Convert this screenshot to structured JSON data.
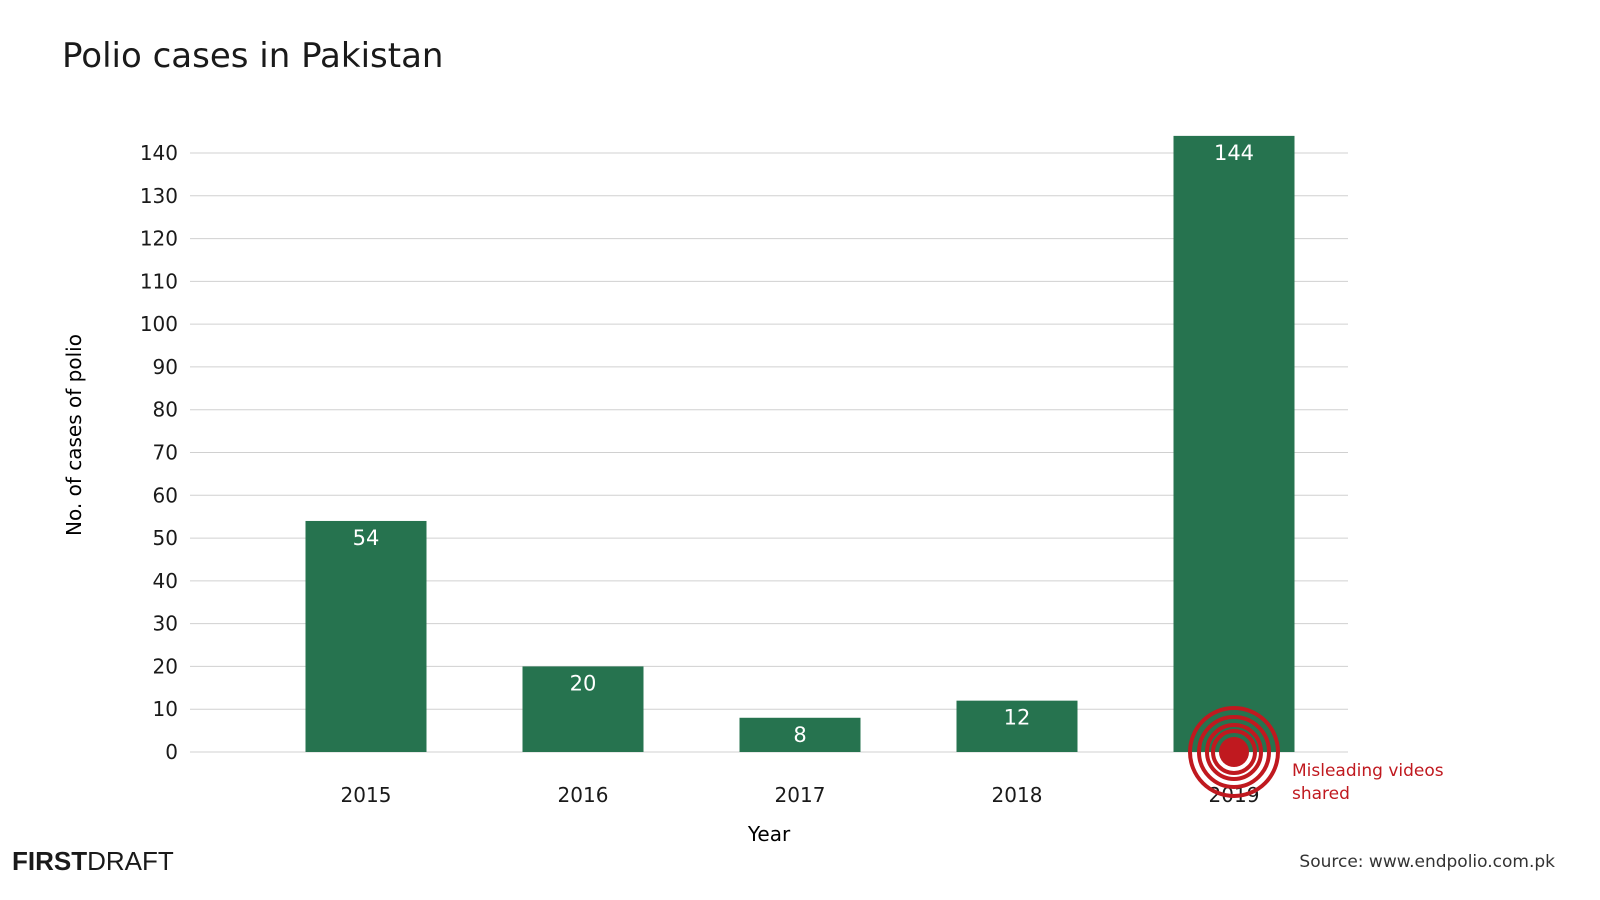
{
  "chart_data": {
    "type": "bar",
    "title": "Polio cases in Pakistan",
    "xlabel": "Year",
    "ylabel": "No. of cases of polio",
    "categories": [
      "2015",
      "2016",
      "2017",
      "2018",
      "2019"
    ],
    "values": [
      54,
      20,
      8,
      12,
      144
    ],
    "ylim": [
      0,
      140
    ],
    "yticks": [
      0,
      10,
      20,
      30,
      40,
      50,
      60,
      70,
      80,
      90,
      100,
      110,
      120,
      130,
      140
    ],
    "grid": true,
    "bar_color": "#26734f",
    "annotation": {
      "category": "2019",
      "lines": [
        "Misleading videos",
        "shared"
      ],
      "color": "#c0191f"
    }
  },
  "branding": {
    "logo_bold": "FIRST",
    "logo_light": "DRAFT"
  },
  "source": "Source: www.endpolio.com.pk"
}
